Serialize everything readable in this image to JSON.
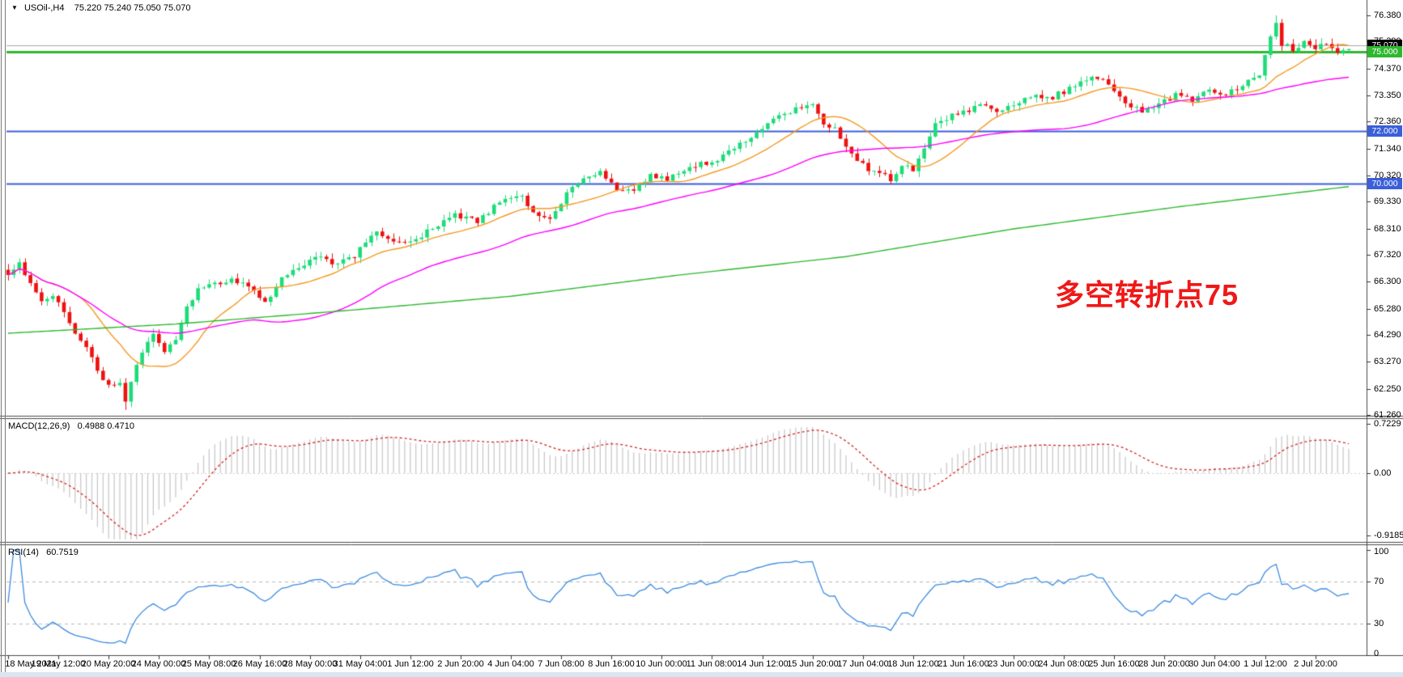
{
  "header": {
    "symbol": "USOil-,H4",
    "ohlc_text": "75.220 75.240 75.050 75.070",
    "dropdown_icon": "down-triangle"
  },
  "annotation": {
    "text": "多空转折点75",
    "color": "#f01818"
  },
  "colors": {
    "background": "#ffffff",
    "candle_up": "#1ddc78",
    "candle_down": "#ee1111",
    "ma_fast": "#f59a23",
    "ma_mid": "#ff00ff",
    "ma_long": "#2eb82e",
    "hline_blue": "#3a5fd9",
    "hline_green": "#2eb82e",
    "ask_line_gray": "#a8a8a8",
    "macd_histogram": "#c6c6c6",
    "macd_signal": "#d42424",
    "rsi_line": "#3c8ce0",
    "rsi_levels_dash": "#b8b8b8",
    "axis_line": "#4a4a4a",
    "current_badge_bg": "#000000"
  },
  "price_axis": {
    "ticks": [
      {
        "value": 76.38,
        "label": "76.380"
      },
      {
        "value": 75.39,
        "label": "75.390"
      },
      {
        "value": 74.37,
        "label": "74.370"
      },
      {
        "value": 73.35,
        "label": "73.350"
      },
      {
        "value": 72.36,
        "label": "72.360"
      },
      {
        "value": 71.34,
        "label": "71.340"
      },
      {
        "value": 70.32,
        "label": "70.320"
      },
      {
        "value": 69.33,
        "label": "69.330"
      },
      {
        "value": 68.31,
        "label": "68.310"
      },
      {
        "value": 67.32,
        "label": "67.320"
      },
      {
        "value": 66.3,
        "label": "66.300"
      },
      {
        "value": 65.28,
        "label": "65.280"
      },
      {
        "value": 64.29,
        "label": "64.290"
      },
      {
        "value": 63.27,
        "label": "63.270"
      },
      {
        "value": 62.25,
        "label": "62.250"
      },
      {
        "value": 61.26,
        "label": "61.260"
      }
    ],
    "badges": [
      {
        "name": "current-price-badge",
        "label": "75.070",
        "value": 75.07,
        "bg": "#000000",
        "interactable": "false"
      },
      {
        "name": "price-level-badge-75",
        "label": "75.000",
        "value": 75.0,
        "bg": "#2eb82e",
        "interactable": "true"
      },
      {
        "name": "price-level-badge-72",
        "label": "72.000",
        "value": 72.0,
        "bg": "#3a5fd9",
        "interactable": "true"
      },
      {
        "name": "price-level-badge-70",
        "label": "70.000",
        "value": 70.0,
        "bg": "#3a5fd9",
        "interactable": "true"
      }
    ]
  },
  "time_axis": {
    "labels": [
      "18 May 2021",
      "19 May 12:00",
      "20 May 20:00",
      "24 May 00:00",
      "25 May 08:00",
      "26 May 16:00",
      "28 May 00:00",
      "31 May 04:00",
      "1 Jun 12:00",
      "2 Jun 20:00",
      "4 Jun 04:00",
      "7 Jun 08:00",
      "8 Jun 16:00",
      "10 Jun 00:00",
      "11 Jun 08:00",
      "14 Jun 12:00",
      "15 Jun 20:00",
      "17 Jun 04:00",
      "18 Jun 12:00",
      "21 Jun 16:00",
      "23 Jun 00:00",
      "24 Jun 08:00",
      "25 Jun 16:00",
      "28 Jun 20:00",
      "30 Jun 04:00",
      "1 Jul 12:00",
      "2 Jul 20:00"
    ],
    "bars_per_label": 9
  },
  "macd_panel": {
    "name_label": "MACD(12,26,9)",
    "values_label": "0.4988 0.4710",
    "axis_labels": [
      {
        "value": 0.7229,
        "label": "0.7229"
      },
      {
        "value": 0.0,
        "label": "0.00"
      },
      {
        "value": -0.9185,
        "label": "-0.9185"
      }
    ],
    "fast": 12,
    "slow": 26,
    "signal": 9
  },
  "rsi_panel": {
    "name_label": "RSI(14)",
    "value_label": "60.7519",
    "axis_labels": [
      {
        "value": 100,
        "label": "100"
      },
      {
        "value": 70,
        "label": "70"
      },
      {
        "value": 30,
        "label": "30"
      },
      {
        "value": 0,
        "label": "0"
      }
    ],
    "period": 14,
    "dashed_levels": [
      70,
      30
    ]
  },
  "chart_data": {
    "type": "candlestick",
    "symbol": "USOil-",
    "timeframe": "H4",
    "title": "USOil-,H4",
    "ohlc_current": {
      "open": 75.22,
      "high": 75.24,
      "low": 75.05,
      "close": 75.07
    },
    "y_range": [
      61.26,
      76.655
    ],
    "n_bars": 241,
    "noise": 0.1,
    "close_anchors": [
      [
        0,
        66.55
      ],
      [
        2,
        67.1
      ],
      [
        4,
        66.2
      ],
      [
        6,
        65.6
      ],
      [
        8,
        65.85
      ],
      [
        10,
        65.1
      ],
      [
        12,
        64.35
      ],
      [
        14,
        63.9
      ],
      [
        16,
        62.9
      ],
      [
        18,
        62.4
      ],
      [
        20,
        62.5
      ],
      [
        21,
        61.8
      ],
      [
        22,
        62.55
      ],
      [
        24,
        63.7
      ],
      [
        26,
        64.3
      ],
      [
        28,
        63.6
      ],
      [
        30,
        64.1
      ],
      [
        32,
        65.3
      ],
      [
        34,
        66.0
      ],
      [
        36,
        66.15
      ],
      [
        40,
        66.35
      ],
      [
        44,
        66.05
      ],
      [
        46,
        65.45
      ],
      [
        48,
        66.2
      ],
      [
        52,
        66.9
      ],
      [
        56,
        67.25
      ],
      [
        58,
        66.9
      ],
      [
        62,
        67.3
      ],
      [
        66,
        68.3
      ],
      [
        68,
        67.9
      ],
      [
        72,
        67.75
      ],
      [
        76,
        68.35
      ],
      [
        80,
        68.85
      ],
      [
        84,
        68.55
      ],
      [
        88,
        69.35
      ],
      [
        92,
        69.55
      ],
      [
        94,
        68.9
      ],
      [
        97,
        68.75
      ],
      [
        100,
        69.6
      ],
      [
        103,
        70.25
      ],
      [
        106,
        70.4
      ],
      [
        109,
        69.85
      ],
      [
        112,
        69.7
      ],
      [
        115,
        70.35
      ],
      [
        118,
        70.15
      ],
      [
        121,
        70.55
      ],
      [
        124,
        70.75
      ],
      [
        127,
        70.95
      ],
      [
        130,
        71.35
      ],
      [
        133,
        71.75
      ],
      [
        136,
        72.25
      ],
      [
        139,
        72.65
      ],
      [
        142,
        72.9
      ],
      [
        144,
        73.1
      ],
      [
        146,
        72.35
      ],
      [
        148,
        72.1
      ],
      [
        150,
        71.4
      ],
      [
        152,
        70.9
      ],
      [
        154,
        70.55
      ],
      [
        156,
        70.4
      ],
      [
        158,
        70.2
      ],
      [
        160,
        70.7
      ],
      [
        162,
        70.55
      ],
      [
        164,
        71.4
      ],
      [
        166,
        72.3
      ],
      [
        168,
        72.5
      ],
      [
        171,
        72.7
      ],
      [
        174,
        73.05
      ],
      [
        177,
        72.8
      ],
      [
        180,
        73.0
      ],
      [
        183,
        73.35
      ],
      [
        186,
        73.2
      ],
      [
        189,
        73.5
      ],
      [
        192,
        73.85
      ],
      [
        195,
        74.05
      ],
      [
        198,
        73.6
      ],
      [
        200,
        73.1
      ],
      [
        203,
        72.75
      ],
      [
        206,
        73.0
      ],
      [
        209,
        73.35
      ],
      [
        212,
        73.2
      ],
      [
        215,
        73.55
      ],
      [
        218,
        73.4
      ],
      [
        221,
        73.75
      ],
      [
        224,
        74.1
      ],
      [
        226,
        75.6
      ],
      [
        227,
        76.1
      ],
      [
        228,
        75.3
      ],
      [
        230,
        75.1
      ],
      [
        232,
        75.35
      ],
      [
        234,
        75.15
      ],
      [
        236,
        75.3
      ],
      [
        238,
        75.0
      ],
      [
        240,
        75.07
      ]
    ],
    "extremes": {
      "high_bar": 227,
      "high": 76.38,
      "low_bar": 21,
      "low": 61.45
    },
    "moving_averages": [
      {
        "name": "fast",
        "type": "sma",
        "period": 14,
        "color": "#f59a23"
      },
      {
        "name": "mid",
        "type": "sma",
        "period": 45,
        "color": "#ff00ff"
      },
      {
        "name": "long",
        "type": "anchored",
        "color": "#2eb82e",
        "anchors": [
          [
            0,
            64.35
          ],
          [
            30,
            64.7
          ],
          [
            60,
            65.2
          ],
          [
            90,
            65.75
          ],
          [
            120,
            66.55
          ],
          [
            150,
            67.25
          ],
          [
            180,
            68.3
          ],
          [
            210,
            69.15
          ],
          [
            240,
            69.9
          ]
        ]
      }
    ],
    "horizontal_lines": [
      {
        "value": 75.0,
        "color": "#2eb82e",
        "width": 3
      },
      {
        "value": 72.0,
        "color": "#3a5fd9",
        "width": 2
      },
      {
        "value": 70.0,
        "color": "#3a5fd9",
        "width": 2
      },
      {
        "value": 75.24,
        "color": "#a8a8a8",
        "width": 1
      }
    ]
  }
}
